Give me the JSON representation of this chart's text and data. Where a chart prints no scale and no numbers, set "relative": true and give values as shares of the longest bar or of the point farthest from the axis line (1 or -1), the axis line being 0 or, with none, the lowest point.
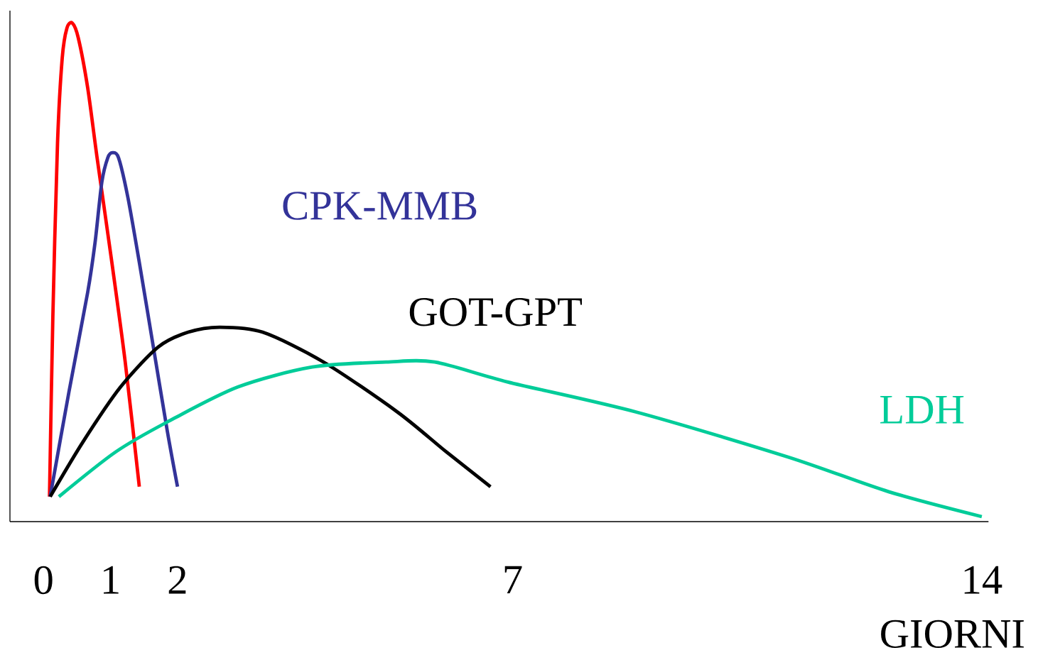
{
  "chart_data": {
    "type": "line",
    "relative": true,
    "xlabel": "GIORNI",
    "xlim": [
      -0.5,
      14.1
    ],
    "xticks": [
      0,
      1,
      2,
      7,
      14
    ],
    "legend": false,
    "grid": false,
    "marker": "none",
    "line_style": "solid",
    "series": [
      {
        "color": "#ff0000",
        "x": [
          0.09,
          0.14,
          0.21,
          0.28,
          0.35,
          0.43,
          0.52,
          0.66,
          0.8,
          1.01,
          1.22,
          1.43
        ],
        "values": [
          0.05,
          0.41,
          0.76,
          0.93,
          0.99,
          1,
          0.97,
          0.87,
          0.73,
          0.53,
          0.32,
          0.07
        ]
      },
      {
        "name": "CPK-MMB",
        "color": "#333399",
        "x": [
          0.1,
          0.38,
          0.66,
          0.77,
          0.87,
          0.96,
          1.03,
          1.12,
          1.26,
          1.43,
          1.64,
          1.85,
          2.0
        ],
        "values": [
          0.05,
          0.26,
          0.46,
          0.56,
          0.68,
          0.73,
          0.74,
          0.73,
          0.65,
          0.52,
          0.35,
          0.18,
          0.07
        ]
      },
      {
        "name": "GOT-GPT",
        "color": "#000000",
        "x": [
          0.1,
          0.59,
          1.15,
          1.71,
          2.16,
          2.63,
          3.27,
          4.18,
          5.28,
          6.01,
          6.67
        ],
        "values": [
          0.05,
          0.16,
          0.27,
          0.35,
          0.38,
          0.39,
          0.38,
          0.32,
          0.22,
          0.14,
          0.07
        ]
      },
      {
        "name": "LDH",
        "color": "#00cc99",
        "x": [
          0.23,
          1.08,
          1.85,
          2.9,
          4.01,
          5.11,
          5.84,
          6.93,
          8.84,
          11.1,
          12.61,
          14.0
        ],
        "values": [
          0.05,
          0.14,
          0.2,
          0.27,
          0.31,
          0.32,
          0.32,
          0.28,
          0.22,
          0.13,
          0.06,
          0.01
        ]
      }
    ]
  }
}
